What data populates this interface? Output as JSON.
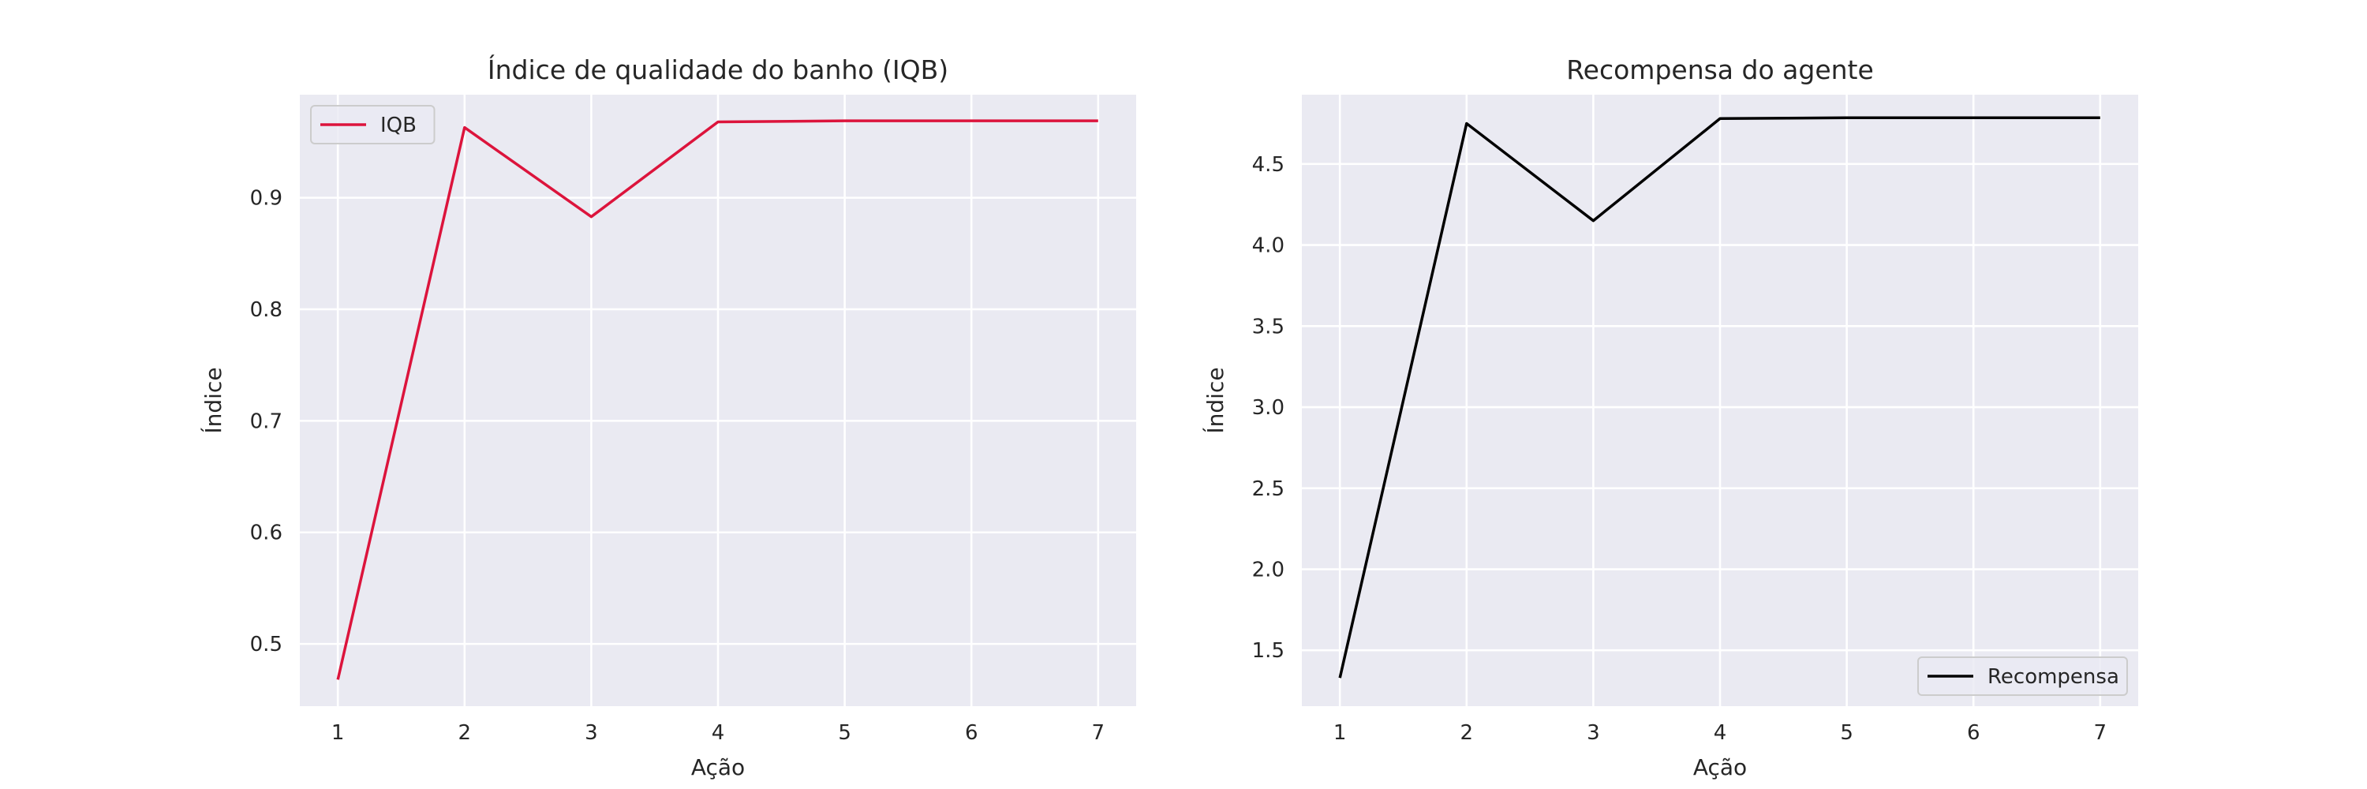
{
  "chart_data": [
    {
      "type": "line",
      "title": "Índice de qualidade do banho (IQB)",
      "xlabel": "Ação",
      "ylabel": "Índice",
      "x": [
        1,
        2,
        3,
        4,
        5,
        6,
        7
      ],
      "xticks": [
        "1",
        "2",
        "3",
        "4",
        "5",
        "6",
        "7"
      ],
      "xlim": [
        0.7,
        7.3
      ],
      "yticks": [
        "0.5",
        "0.6",
        "0.7",
        "0.8",
        "0.9"
      ],
      "ytick_values": [
        0.5,
        0.6,
        0.7,
        0.8,
        0.9
      ],
      "ylim": [
        0.4442,
        0.9924
      ],
      "grid": true,
      "legend": "upper left",
      "series": [
        {
          "name": "IQB",
          "color": "#dc143c",
          "values": [
            0.468,
            0.963,
            0.883,
            0.968,
            0.969,
            0.969,
            0.969
          ]
        }
      ]
    },
    {
      "type": "line",
      "title": "Recompensa do agente",
      "xlabel": "Ação",
      "ylabel": "Índice",
      "x": [
        1,
        2,
        3,
        4,
        5,
        6,
        7
      ],
      "xticks": [
        "1",
        "2",
        "3",
        "4",
        "5",
        "6",
        "7"
      ],
      "xlim": [
        0.7,
        7.3
      ],
      "yticks": [
        "1.5",
        "2.0",
        "2.5",
        "3.0",
        "3.5",
        "4.0",
        "4.5"
      ],
      "ytick_values": [
        1.5,
        2.0,
        2.5,
        3.0,
        3.5,
        4.0,
        4.5
      ],
      "ylim": [
        1.1556,
        4.9274
      ],
      "grid": true,
      "legend": "lower right",
      "series": [
        {
          "name": "Recompensa",
          "color": "#000000",
          "values": [
            1.33,
            4.75,
            4.15,
            4.78,
            4.785,
            4.785,
            4.785
          ]
        }
      ]
    }
  ]
}
